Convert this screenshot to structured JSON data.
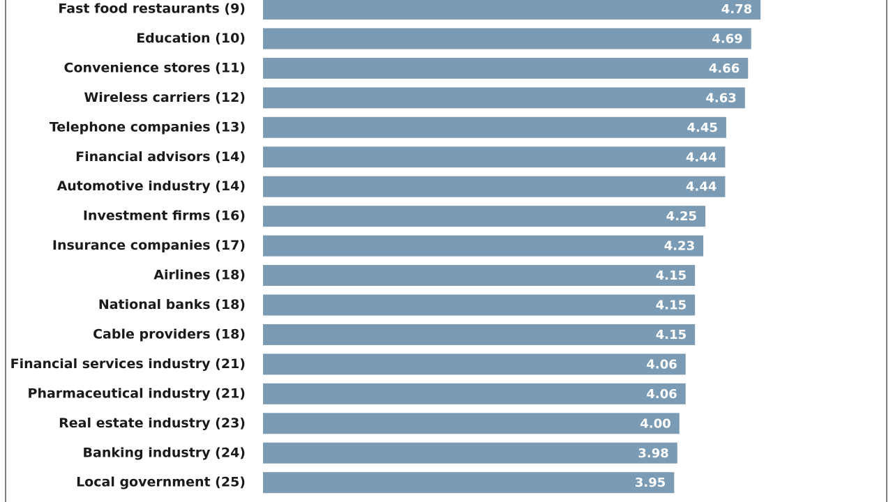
{
  "chart_data": {
    "type": "bar",
    "orientation": "horizontal",
    "color": "#7a9bb3",
    "categories": [
      "Fast food restaurants (9)",
      "Education (10)",
      "Convenience stores (11)",
      "Wireless carriers (12)",
      "Telephone companies (13)",
      "Financial advisors (14)",
      "Automotive industry (14)",
      "Investment firms (16)",
      "Insurance companies (17)",
      "Airlines (18)",
      "National banks (18)",
      "Cable providers (18)",
      "Financial services industry (21)",
      "Pharmaceutical industry (21)",
      "Real estate industry (23)",
      "Banking industry (24)",
      "Local government (25)"
    ],
    "values": [
      4.78,
      4.69,
      4.66,
      4.63,
      4.45,
      4.44,
      4.44,
      4.25,
      4.23,
      4.15,
      4.15,
      4.15,
      4.06,
      4.06,
      4.0,
      3.98,
      3.95
    ],
    "value_labels": [
      "4.78",
      "4.69",
      "4.66",
      "4.63",
      "4.45",
      "4.44",
      "4.44",
      "4.25",
      "4.23",
      "4.15",
      "4.15",
      "4.15",
      "4.06",
      "4.06",
      "4.00",
      "3.98",
      "3.95"
    ]
  }
}
